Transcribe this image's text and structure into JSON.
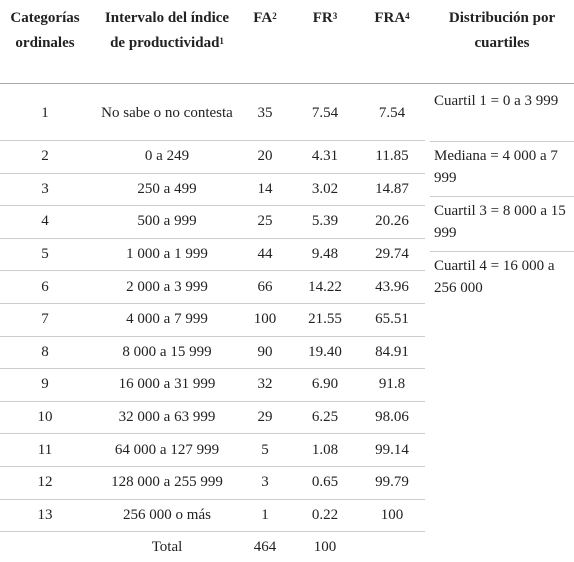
{
  "header": [
    {
      "text": "Categorías ordinales"
    },
    {
      "text": "Intervalo del índice de productividad",
      "sup": "1"
    },
    {
      "text": "FA",
      "sup": "2"
    },
    {
      "text": "FR",
      "sup": "3"
    },
    {
      "text": "FRA",
      "sup": "4"
    },
    {
      "text": "Distribución por cuartiles"
    }
  ],
  "table": {
    "rows": [
      [
        "1",
        "No sabe o no contesta",
        "35",
        "7.54",
        "7.54"
      ],
      [
        "2",
        "0 a 249",
        "20",
        "4.31",
        "11.85"
      ],
      [
        "3",
        "250 a 499",
        "14",
        "3.02",
        "14.87"
      ],
      [
        "4",
        "500 a 999",
        "25",
        "5.39",
        "20.26"
      ],
      [
        "5",
        "1 000 a 1 999",
        "44",
        "9.48",
        "29.74"
      ],
      [
        "6",
        "2 000 a 3 999",
        "66",
        "14.22",
        "43.96"
      ],
      [
        "7",
        "4 000 a 7 999",
        "100",
        "21.55",
        "65.51"
      ],
      [
        "8",
        "8 000 a 15 999",
        "90",
        "19.40",
        "84.91"
      ],
      [
        "9",
        "16 000 a 31 999",
        "32",
        "6.90",
        "91.8"
      ],
      [
        "10",
        "32 000 a 63 999",
        "29",
        "6.25",
        "98.06"
      ],
      [
        "11",
        "64 000 a 127 999",
        "5",
        "1.08",
        "99.14"
      ],
      [
        "12",
        "128 000 a 255 999",
        "3",
        "0.65",
        "99.79"
      ],
      [
        "13",
        "256 000 o más",
        "1",
        "0.22",
        "100"
      ]
    ],
    "total": {
      "label": "Total",
      "fa": "464",
      "fr": "100"
    },
    "quartiles": [
      "Cuartil 1 = 0 a 3 999",
      "Mediana = 4 000 a 7 999",
      "Cuartil 3 = 8 000 a 15 999",
      "Cuartil 4 = 16 000 a 256 000"
    ]
  }
}
